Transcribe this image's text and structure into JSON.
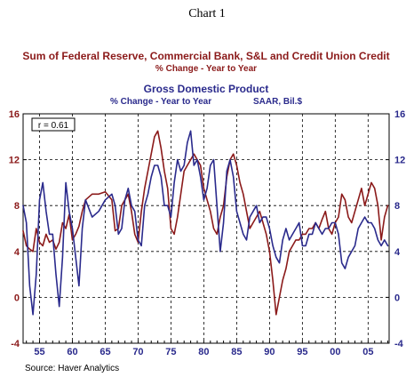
{
  "header": {
    "chart_number": "Chart 1",
    "source": "Source: Haver Analytics"
  },
  "chart_data": {
    "type": "line",
    "title": "Sum of Federal Reserve, Commercial Bank, S&L and Credit Union Credit",
    "subtitle": "% Change - Year to Year",
    "title2": "Gross Domestic Product",
    "subtitle2_left": "% Change - Year to Year",
    "subtitle2_right": "SAAR, Bil.$",
    "annotation": "r = 0.61",
    "xlim": [
      1952.5,
      2008.2
    ],
    "ylim": [
      -4,
      16
    ],
    "x_tick_labels": [
      "55",
      "60",
      "65",
      "70",
      "75",
      "80",
      "85",
      "90",
      "95",
      "00",
      "05"
    ],
    "x_tick_years": [
      1955,
      1960,
      1965,
      1970,
      1975,
      1980,
      1985,
      1990,
      1995,
      2000,
      2005
    ],
    "y_ticks": [
      -4,
      0,
      4,
      8,
      12,
      16
    ],
    "y_tick_labels": [
      "-4",
      "0",
      "4",
      "8",
      "12",
      "16"
    ],
    "grid": "dashed",
    "colors": {
      "credit": "#8b1a1a",
      "gdp": "#2a2a8c"
    },
    "series": [
      {
        "name": "Sum of Federal Reserve, Commercial Bank, S&L and Credit Union Credit",
        "axis": "left",
        "x": [
          1952.5,
          1953.0,
          1953.5,
          1954.0,
          1954.5,
          1955.0,
          1955.5,
          1956.0,
          1956.5,
          1957.0,
          1957.5,
          1958.0,
          1958.5,
          1959.0,
          1959.5,
          1960.0,
          1960.5,
          1961.0,
          1961.5,
          1962.0,
          1963.0,
          1964.0,
          1965.0,
          1966.0,
          1966.5,
          1967.0,
          1967.5,
          1968.0,
          1968.5,
          1969.0,
          1969.5,
          1970.0,
          1970.5,
          1971.0,
          1971.5,
          1972.0,
          1972.5,
          1973.0,
          1973.5,
          1974.0,
          1974.5,
          1975.0,
          1975.5,
          1976.0,
          1976.5,
          1977.0,
          1977.5,
          1978.0,
          1978.5,
          1979.0,
          1979.5,
          1980.0,
          1980.5,
          1981.0,
          1981.5,
          1982.0,
          1982.5,
          1983.0,
          1983.5,
          1984.0,
          1984.5,
          1985.0,
          1985.5,
          1986.0,
          1986.5,
          1987.0,
          1987.5,
          1988.0,
          1988.5,
          1989.0,
          1989.5,
          1990.0,
          1990.5,
          1991.0,
          1991.5,
          1992.0,
          1992.5,
          1993.0,
          1993.5,
          1994.0,
          1994.5,
          1995.0,
          1995.5,
          1996.0,
          1996.5,
          1997.0,
          1997.5,
          1998.0,
          1998.5,
          1999.0,
          1999.5,
          2000.0,
          2000.5,
          2001.0,
          2001.5,
          2002.0,
          2002.5,
          2003.0,
          2003.5,
          2004.0,
          2004.5,
          2005.0,
          2005.5,
          2006.0,
          2006.5,
          2007.0,
          2007.5,
          2008.0
        ],
        "y": [
          5.8,
          4.5,
          4.2,
          4.0,
          6.0,
          4.8,
          4.5,
          5.5,
          4.8,
          5.0,
          4.2,
          4.8,
          6.5,
          6.0,
          7.2,
          5.0,
          5.5,
          6.2,
          7.5,
          8.5,
          9.0,
          9.0,
          9.2,
          8.5,
          5.8,
          6.0,
          8.0,
          8.5,
          9.0,
          7.5,
          5.5,
          4.8,
          7.5,
          9.5,
          11.0,
          12.5,
          14.0,
          14.5,
          13.0,
          11.0,
          9.5,
          6.0,
          5.5,
          7.0,
          9.0,
          11.0,
          11.5,
          12.0,
          12.5,
          12.0,
          11.5,
          9.5,
          8.5,
          7.5,
          6.0,
          5.5,
          7.0,
          8.0,
          10.5,
          12.0,
          12.5,
          11.5,
          10.0,
          9.0,
          7.5,
          6.0,
          6.5,
          7.0,
          7.5,
          6.5,
          5.5,
          4.0,
          1.5,
          -1.5,
          0.0,
          1.5,
          2.5,
          4.0,
          4.5,
          5.0,
          5.0,
          5.5,
          5.5,
          6.0,
          6.0,
          6.5,
          6.0,
          6.8,
          7.5,
          6.0,
          5.5,
          6.5,
          7.0,
          9.0,
          8.5,
          7.0,
          6.5,
          7.5,
          8.5,
          9.5,
          8.0,
          9.0,
          10.0,
          9.5,
          8.0,
          5.0,
          7.0,
          8.0
        ]
      },
      {
        "name": "Gross Domestic Product",
        "axis": "right",
        "x": [
          1952.5,
          1953.0,
          1953.5,
          1954.0,
          1954.5,
          1955.0,
          1955.5,
          1956.0,
          1956.5,
          1957.0,
          1957.5,
          1958.0,
          1958.5,
          1959.0,
          1959.5,
          1960.0,
          1960.5,
          1961.0,
          1961.5,
          1962.0,
          1963.0,
          1964.0,
          1965.0,
          1966.0,
          1966.5,
          1967.0,
          1967.5,
          1968.0,
          1968.5,
          1969.0,
          1969.5,
          1970.0,
          1970.5,
          1971.0,
          1971.5,
          1972.0,
          1972.5,
          1973.0,
          1973.5,
          1974.0,
          1974.5,
          1975.0,
          1975.5,
          1976.0,
          1976.5,
          1977.0,
          1977.5,
          1978.0,
          1978.5,
          1979.0,
          1979.5,
          1980.0,
          1980.5,
          1981.0,
          1981.5,
          1982.0,
          1982.5,
          1983.0,
          1983.5,
          1984.0,
          1984.5,
          1985.0,
          1985.5,
          1986.0,
          1986.5,
          1987.0,
          1987.5,
          1988.0,
          1988.5,
          1989.0,
          1989.5,
          1990.0,
          1990.5,
          1991.0,
          1991.5,
          1992.0,
          1992.5,
          1993.0,
          1993.5,
          1994.0,
          1994.5,
          1995.0,
          1995.5,
          1996.0,
          1996.5,
          1997.0,
          1997.5,
          1998.0,
          1998.5,
          1999.0,
          1999.5,
          2000.0,
          2000.5,
          2001.0,
          2001.5,
          2002.0,
          2002.5,
          2003.0,
          2003.5,
          2004.0,
          2004.5,
          2005.0,
          2005.5,
          2006.0,
          2006.5,
          2007.0,
          2007.5,
          2008.0
        ],
        "y": [
          8.0,
          6.5,
          1.0,
          -1.5,
          2.0,
          8.5,
          10.0,
          7.5,
          5.5,
          5.5,
          2.0,
          -0.8,
          3.5,
          10.0,
          7.5,
          6.0,
          3.5,
          1.0,
          6.0,
          8.5,
          7.0,
          7.5,
          8.5,
          9.0,
          8.0,
          5.5,
          6.0,
          8.5,
          9.5,
          8.0,
          7.5,
          5.0,
          4.5,
          8.0,
          9.0,
          10.5,
          11.5,
          11.5,
          10.5,
          8.0,
          8.0,
          7.0,
          10.0,
          12.0,
          11.0,
          11.5,
          13.5,
          14.5,
          11.5,
          12.0,
          10.5,
          8.5,
          9.5,
          11.5,
          12.0,
          8.0,
          4.0,
          6.5,
          11.0,
          12.0,
          10.5,
          7.5,
          6.5,
          5.5,
          5.0,
          7.0,
          7.5,
          8.0,
          6.5,
          7.0,
          7.0,
          6.0,
          4.5,
          3.5,
          3.0,
          5.0,
          6.0,
          5.0,
          5.5,
          6.0,
          6.5,
          4.5,
          4.5,
          5.5,
          5.5,
          6.5,
          6.0,
          5.5,
          6.0,
          6.0,
          6.5,
          6.5,
          5.5,
          3.0,
          2.5,
          3.5,
          4.0,
          4.5,
          6.0,
          6.5,
          7.0,
          6.5,
          6.5,
          6.0,
          5.0,
          4.5,
          5.0,
          4.5
        ]
      }
    ]
  }
}
